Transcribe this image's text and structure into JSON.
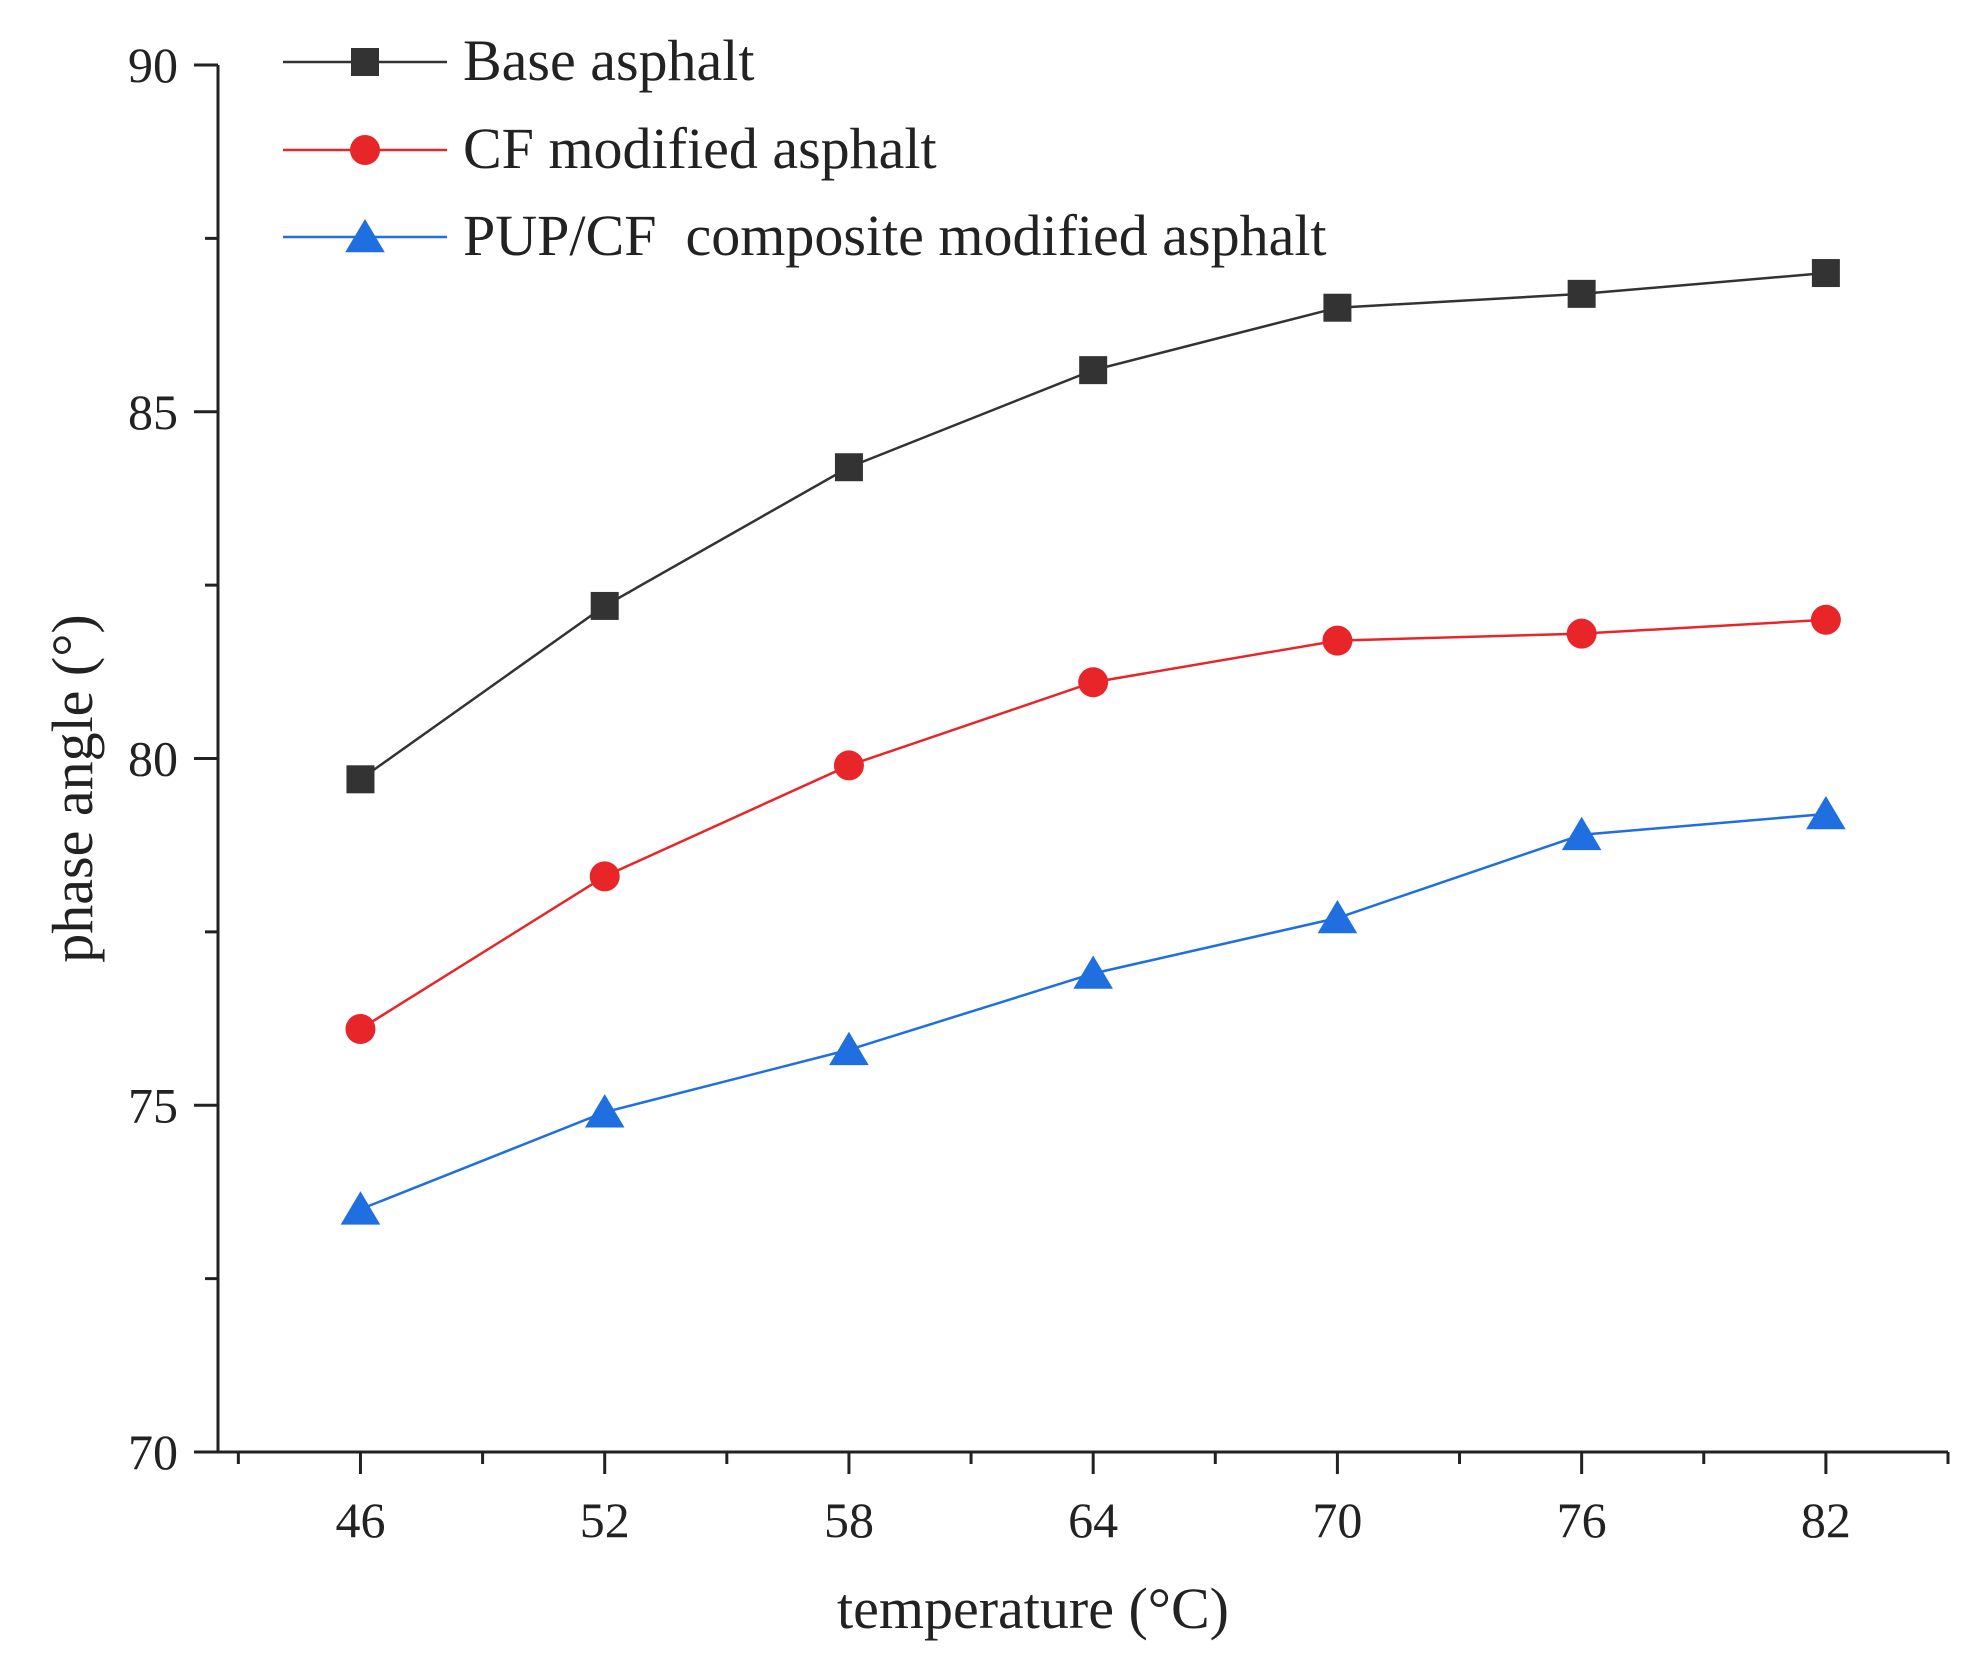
{
  "chart_data": {
    "type": "line",
    "title": "",
    "xlabel": "temperature (°C)",
    "ylabel": "phase angle (°)",
    "x": [
      46,
      52,
      58,
      64,
      70,
      76,
      82
    ],
    "xticks": [
      "46",
      "52",
      "58",
      "64",
      "70",
      "76",
      "82"
    ],
    "yticks": [
      "70",
      "75",
      "80",
      "85",
      "90"
    ],
    "ylim": [
      70,
      90
    ],
    "xlim": [
      42.5,
      85
    ],
    "grid": false,
    "legend_position": "top-left",
    "series": [
      {
        "name": "Base asphalt",
        "color": "#333333",
        "marker": "square",
        "values": [
          79.7,
          82.2,
          84.2,
          85.6,
          86.5,
          86.7,
          87.0
        ]
      },
      {
        "name": "CF modified asphalt",
        "color": "#e8262a",
        "marker": "circle",
        "values": [
          76.1,
          78.3,
          79.9,
          81.1,
          81.7,
          81.8,
          82.0
        ]
      },
      {
        "name": "PUP/CF  composite modified asphalt",
        "color": "#1f6fe0",
        "marker": "triangle",
        "values": [
          73.5,
          74.9,
          75.8,
          76.9,
          77.7,
          78.9,
          79.2
        ]
      }
    ]
  }
}
